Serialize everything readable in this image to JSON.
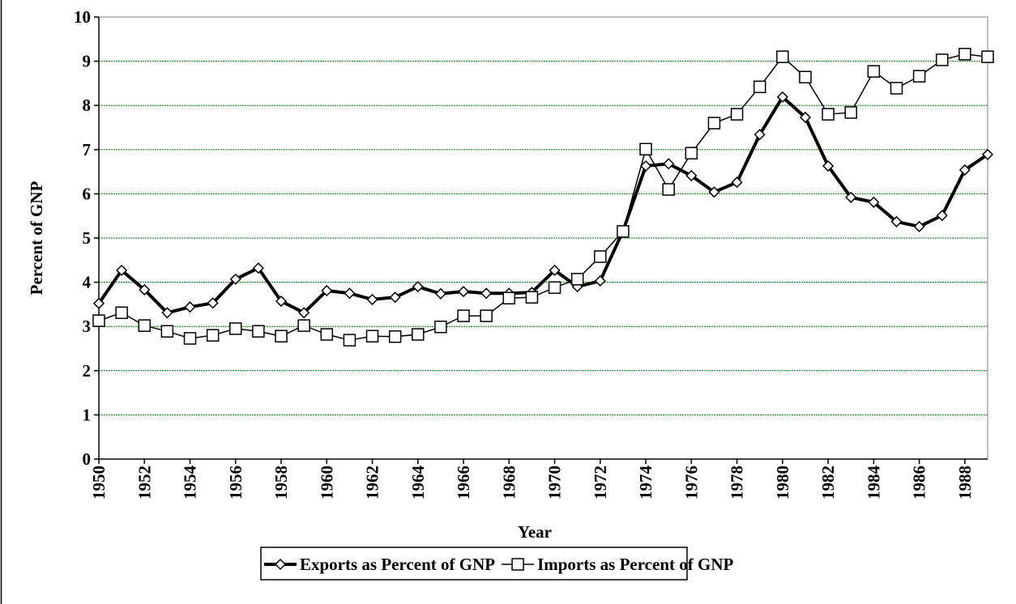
{
  "chart_data": {
    "type": "line",
    "x_label": "Year",
    "y_label": "Percent of GNP",
    "x": [
      1950,
      1951,
      1952,
      1953,
      1954,
      1955,
      1956,
      1957,
      1958,
      1959,
      1960,
      1961,
      1962,
      1963,
      1964,
      1965,
      1966,
      1967,
      1968,
      1969,
      1970,
      1971,
      1972,
      1973,
      1974,
      1975,
      1976,
      1977,
      1978,
      1979,
      1980,
      1981,
      1982,
      1983,
      1984,
      1985,
      1986,
      1987,
      1988,
      1989
    ],
    "series": [
      {
        "name": "Exports as Percent of GNP",
        "color": "#000000",
        "marker": "diamond",
        "values": [
          3.52,
          4.27,
          3.83,
          3.31,
          3.44,
          3.53,
          4.07,
          4.32,
          3.57,
          3.31,
          3.81,
          3.75,
          3.61,
          3.66,
          3.9,
          3.74,
          3.79,
          3.75,
          3.75,
          3.77,
          4.27,
          3.9,
          4.03,
          5.16,
          6.63,
          6.68,
          6.41,
          6.04,
          6.26,
          7.34,
          8.19,
          7.73,
          6.63,
          5.92,
          5.81,
          5.37,
          5.26,
          5.51,
          6.54,
          6.89
        ]
      },
      {
        "name": "Imports as Percent of GNP",
        "color": "#000000",
        "marker": "square",
        "values": [
          3.13,
          3.31,
          3.02,
          2.89,
          2.73,
          2.8,
          2.95,
          2.89,
          2.78,
          3.02,
          2.82,
          2.69,
          2.78,
          2.77,
          2.82,
          2.99,
          3.24,
          3.24,
          3.64,
          3.66,
          3.88,
          4.07,
          4.58,
          5.15,
          7.01,
          6.1,
          6.92,
          7.6,
          7.8,
          8.42,
          9.1,
          8.64,
          7.8,
          7.84,
          8.77,
          8.39,
          8.66,
          9.03,
          9.16,
          9.1
        ]
      }
    ],
    "xlim": [
      1950,
      1989
    ],
    "xticks": [
      1950,
      1952,
      1954,
      1956,
      1958,
      1960,
      1962,
      1964,
      1966,
      1968,
      1970,
      1972,
      1974,
      1976,
      1978,
      1980,
      1982,
      1984,
      1986,
      1988
    ],
    "ylim": [
      0,
      10
    ],
    "yticks": [
      0,
      1,
      2,
      3,
      4,
      5,
      6,
      7,
      8,
      9,
      10
    ],
    "grid": true,
    "grid_color": "#008000",
    "legend": "bottom"
  }
}
